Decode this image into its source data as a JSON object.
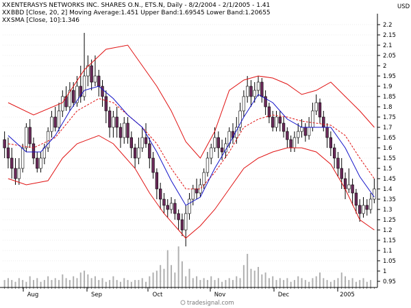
{
  "header": {
    "line1": "ENTERASYS NETWORKS INC. SHARES O.N., ETS.N, Daily - 8/2/2004 - 2/1/2005 - 1.41",
    "line2": "BBD [Close, 20, 2] Moving Average:1.451 Upper Band:1.69545 Lower Band:1.20655",
    "line3": "SMA [Close, 10]:1.346",
    "currency": "USD",
    "watermark": "tradesignal.com",
    "marker": "XX"
  },
  "colors": {
    "background": "#ffffff",
    "up_candle": "#ffffff",
    "down_candle": "#6b2a5a",
    "candle_outline": "#000000",
    "band": "#e01010",
    "moving_average": "#e01010",
    "sma": "#1010c8",
    "volume": "#b0b0b0",
    "grid": "#d8d8d8",
    "header_line1": "#000000",
    "header_line2": "#cc0000",
    "header_line3": "#0000cc"
  },
  "chart_data": {
    "type": "candlestick",
    "x_labels": [
      "Aug",
      "Sep",
      "Oct",
      "Nov",
      "Dec",
      "2005"
    ],
    "y_ticks": [
      "0.95",
      "1",
      "1.05",
      "1.1",
      "1.15",
      "1.2",
      "1.25",
      "1.3",
      "1.35",
      "1.4",
      "1.45",
      "1.5",
      "1.55",
      "1.6",
      "1.65",
      "1.7",
      "1.75",
      "1.8",
      "1.85",
      "1.9",
      "1.95",
      "2",
      "2.05",
      "2.1",
      "2.15",
      "2.2"
    ],
    "ylim": [
      0.92,
      2.22
    ],
    "candles": [
      [
        1.64,
        1.6,
        1.68,
        1.55
      ],
      [
        1.6,
        1.55,
        1.65,
        1.5
      ],
      [
        1.55,
        1.5,
        1.6,
        1.45
      ],
      [
        1.5,
        1.45,
        1.55,
        1.42
      ],
      [
        1.45,
        1.5,
        1.55,
        1.42
      ],
      [
        1.5,
        1.6,
        1.62,
        1.48
      ],
      [
        1.6,
        1.7,
        1.72,
        1.58
      ],
      [
        1.7,
        1.62,
        1.74,
        1.6
      ],
      [
        1.62,
        1.55,
        1.65,
        1.52
      ],
      [
        1.55,
        1.5,
        1.58,
        1.48
      ],
      [
        1.5,
        1.55,
        1.58,
        1.48
      ],
      [
        1.55,
        1.6,
        1.62,
        1.52
      ],
      [
        1.6,
        1.68,
        1.7,
        1.58
      ],
      [
        1.68,
        1.75,
        1.78,
        1.65
      ],
      [
        1.75,
        1.7,
        1.8,
        1.68
      ],
      [
        1.7,
        1.78,
        1.82,
        1.68
      ],
      [
        1.78,
        1.85,
        1.88,
        1.75
      ],
      [
        1.85,
        1.8,
        1.9,
        1.78
      ],
      [
        1.8,
        1.88,
        1.92,
        1.78
      ],
      [
        1.88,
        1.82,
        1.92,
        1.8
      ],
      [
        1.82,
        1.9,
        1.95,
        1.8
      ],
      [
        1.9,
        1.85,
        2.0,
        1.82
      ],
      [
        1.85,
        1.95,
        2.16,
        1.83
      ],
      [
        1.95,
        2.0,
        2.05,
        1.9
      ],
      [
        2.0,
        1.92,
        2.03,
        1.88
      ],
      [
        1.92,
        1.95,
        2.05,
        1.9
      ],
      [
        1.95,
        1.9,
        1.98,
        1.85
      ],
      [
        1.9,
        1.85,
        1.93,
        1.8
      ],
      [
        1.85,
        1.78,
        1.88,
        1.72
      ],
      [
        1.78,
        1.7,
        1.8,
        1.65
      ],
      [
        1.7,
        1.75,
        1.78,
        1.65
      ],
      [
        1.75,
        1.7,
        1.8,
        1.65
      ],
      [
        1.7,
        1.65,
        1.72,
        1.6
      ],
      [
        1.65,
        1.72,
        1.75,
        1.62
      ],
      [
        1.72,
        1.65,
        1.75,
        1.62
      ],
      [
        1.65,
        1.6,
        1.68,
        1.55
      ],
      [
        1.6,
        1.55,
        1.62,
        1.5
      ],
      [
        1.55,
        1.6,
        1.65,
        1.52
      ],
      [
        1.6,
        1.65,
        1.7,
        1.58
      ],
      [
        1.65,
        1.62,
        1.72,
        1.6
      ],
      [
        1.62,
        1.55,
        1.65,
        1.5
      ],
      [
        1.55,
        1.48,
        1.58,
        1.45
      ],
      [
        1.48,
        1.4,
        1.5,
        1.35
      ],
      [
        1.4,
        1.35,
        1.43,
        1.3
      ],
      [
        1.35,
        1.32,
        1.38,
        1.28
      ],
      [
        1.32,
        1.3,
        1.35,
        1.26
      ],
      [
        1.3,
        1.33,
        1.36,
        1.28
      ],
      [
        1.33,
        1.28,
        1.35,
        1.25
      ],
      [
        1.28,
        1.25,
        1.3,
        1.2
      ],
      [
        1.25,
        1.2,
        1.28,
        1.17
      ],
      [
        1.2,
        1.28,
        1.32,
        1.12
      ],
      [
        1.28,
        1.35,
        1.38,
        1.25
      ],
      [
        1.35,
        1.4,
        1.42,
        1.32
      ],
      [
        1.4,
        1.38,
        1.45,
        1.35
      ],
      [
        1.38,
        1.42,
        1.45,
        1.36
      ],
      [
        1.42,
        1.48,
        1.5,
        1.4
      ],
      [
        1.48,
        1.55,
        1.58,
        1.46
      ],
      [
        1.55,
        1.6,
        1.62,
        1.52
      ],
      [
        1.6,
        1.65,
        1.7,
        1.58
      ],
      [
        1.65,
        1.6,
        1.68,
        1.55
      ],
      [
        1.6,
        1.58,
        1.64,
        1.54
      ],
      [
        1.58,
        1.62,
        1.65,
        1.55
      ],
      [
        1.62,
        1.68,
        1.7,
        1.6
      ],
      [
        1.68,
        1.65,
        1.72,
        1.62
      ],
      [
        1.65,
        1.7,
        1.75,
        1.62
      ],
      [
        1.7,
        1.78,
        1.82,
        1.68
      ],
      [
        1.78,
        1.85,
        1.88,
        1.75
      ],
      [
        1.85,
        1.9,
        1.95,
        1.82
      ],
      [
        1.9,
        1.85,
        1.93,
        1.8
      ],
      [
        1.85,
        1.88,
        1.92,
        1.82
      ],
      [
        1.88,
        1.92,
        1.95,
        1.85
      ],
      [
        1.92,
        1.85,
        1.94,
        1.82
      ],
      [
        1.85,
        1.8,
        1.88,
        1.76
      ],
      [
        1.8,
        1.75,
        1.82,
        1.72
      ],
      [
        1.75,
        1.7,
        1.78,
        1.68
      ],
      [
        1.7,
        1.75,
        1.78,
        1.68
      ],
      [
        1.75,
        1.72,
        1.78,
        1.68
      ],
      [
        1.72,
        1.68,
        1.75,
        1.65
      ],
      [
        1.68,
        1.64,
        1.7,
        1.6
      ],
      [
        1.64,
        1.6,
        1.66,
        1.58
      ],
      [
        1.6,
        1.65,
        1.68,
        1.58
      ],
      [
        1.65,
        1.68,
        1.72,
        1.62
      ],
      [
        1.68,
        1.7,
        1.74,
        1.65
      ],
      [
        1.7,
        1.66,
        1.72,
        1.63
      ],
      [
        1.66,
        1.7,
        1.75,
        1.64
      ],
      [
        1.7,
        1.78,
        1.82,
        1.68
      ],
      [
        1.78,
        1.82,
        1.86,
        1.76
      ],
      [
        1.82,
        1.75,
        1.84,
        1.72
      ],
      [
        1.75,
        1.7,
        1.78,
        1.68
      ],
      [
        1.7,
        1.65,
        1.72,
        1.6
      ],
      [
        1.65,
        1.6,
        1.68,
        1.56
      ],
      [
        1.6,
        1.55,
        1.62,
        1.5
      ],
      [
        1.55,
        1.5,
        1.58,
        1.46
      ],
      [
        1.5,
        1.45,
        1.55,
        1.4
      ],
      [
        1.45,
        1.4,
        1.48,
        1.35
      ],
      [
        1.4,
        1.42,
        1.5,
        1.38
      ],
      [
        1.42,
        1.38,
        1.45,
        1.32
      ],
      [
        1.38,
        1.32,
        1.4,
        1.28
      ],
      [
        1.32,
        1.28,
        1.35,
        1.24
      ],
      [
        1.28,
        1.32,
        1.36,
        1.26
      ],
      [
        1.32,
        1.3,
        1.35,
        1.27
      ],
      [
        1.3,
        1.35,
        1.38,
        1.28
      ],
      [
        1.35,
        1.4,
        1.45,
        1.33
      ]
    ],
    "bollinger_upper": [
      [
        1,
        1.82
      ],
      [
        8,
        1.76
      ],
      [
        16,
        1.82
      ],
      [
        22,
        1.98
      ],
      [
        28,
        2.08
      ],
      [
        34,
        2.1
      ],
      [
        38,
        2.0
      ],
      [
        42,
        1.9
      ],
      [
        46,
        1.78
      ],
      [
        50,
        1.63
      ],
      [
        54,
        1.55
      ],
      [
        58,
        1.68
      ],
      [
        62,
        1.88
      ],
      [
        66,
        1.93
      ],
      [
        70,
        1.95
      ],
      [
        74,
        1.94
      ],
      [
        78,
        1.91
      ],
      [
        82,
        1.86
      ],
      [
        86,
        1.88
      ],
      [
        90,
        1.92
      ],
      [
        94,
        1.85
      ],
      [
        98,
        1.78
      ],
      [
        102,
        1.7
      ]
    ],
    "bollinger_lower": [
      [
        1,
        1.45
      ],
      [
        6,
        1.42
      ],
      [
        12,
        1.44
      ],
      [
        16,
        1.55
      ],
      [
        20,
        1.62
      ],
      [
        26,
        1.66
      ],
      [
        30,
        1.62
      ],
      [
        36,
        1.5
      ],
      [
        40,
        1.38
      ],
      [
        44,
        1.28
      ],
      [
        48,
        1.2
      ],
      [
        50,
        1.16
      ],
      [
        54,
        1.22
      ],
      [
        58,
        1.3
      ],
      [
        62,
        1.4
      ],
      [
        66,
        1.5
      ],
      [
        70,
        1.55
      ],
      [
        74,
        1.58
      ],
      [
        78,
        1.6
      ],
      [
        82,
        1.6
      ],
      [
        86,
        1.58
      ],
      [
        90,
        1.52
      ],
      [
        94,
        1.4
      ],
      [
        98,
        1.25
      ],
      [
        102,
        1.2
      ]
    ],
    "moving_average": [
      [
        1,
        1.62
      ],
      [
        8,
        1.6
      ],
      [
        14,
        1.65
      ],
      [
        20,
        1.78
      ],
      [
        26,
        1.84
      ],
      [
        30,
        1.82
      ],
      [
        34,
        1.76
      ],
      [
        38,
        1.7
      ],
      [
        42,
        1.62
      ],
      [
        46,
        1.5
      ],
      [
        50,
        1.4
      ],
      [
        54,
        1.4
      ],
      [
        58,
        1.48
      ],
      [
        62,
        1.58
      ],
      [
        66,
        1.7
      ],
      [
        70,
        1.74
      ],
      [
        74,
        1.76
      ],
      [
        78,
        1.75
      ],
      [
        82,
        1.73
      ],
      [
        86,
        1.72
      ],
      [
        90,
        1.71
      ],
      [
        94,
        1.66
      ],
      [
        98,
        1.55
      ],
      [
        102,
        1.45
      ]
    ],
    "sma": [
      [
        1,
        1.66
      ],
      [
        6,
        1.58
      ],
      [
        10,
        1.58
      ],
      [
        14,
        1.66
      ],
      [
        18,
        1.78
      ],
      [
        22,
        1.88
      ],
      [
        26,
        1.9
      ],
      [
        30,
        1.84
      ],
      [
        34,
        1.76
      ],
      [
        38,
        1.7
      ],
      [
        42,
        1.58
      ],
      [
        46,
        1.44
      ],
      [
        50,
        1.32
      ],
      [
        54,
        1.36
      ],
      [
        58,
        1.5
      ],
      [
        62,
        1.62
      ],
      [
        66,
        1.75
      ],
      [
        70,
        1.86
      ],
      [
        74,
        1.82
      ],
      [
        78,
        1.74
      ],
      [
        82,
        1.7
      ],
      [
        86,
        1.7
      ],
      [
        90,
        1.7
      ],
      [
        94,
        1.6
      ],
      [
        98,
        1.46
      ],
      [
        102,
        1.36
      ]
    ],
    "volume": [
      4,
      5,
      4,
      3,
      5,
      4,
      3,
      6,
      4,
      5,
      3,
      4,
      6,
      4,
      5,
      4,
      7,
      5,
      4,
      6,
      5,
      8,
      9,
      7,
      5,
      6,
      4,
      5,
      3,
      4,
      6,
      4,
      3,
      5,
      4,
      3,
      4,
      4,
      5,
      3,
      6,
      8,
      9,
      12,
      10,
      20,
      12,
      8,
      22,
      14,
      6,
      10,
      5,
      6,
      4,
      5,
      4,
      6,
      4,
      5,
      3,
      4,
      5,
      4,
      6,
      5,
      12,
      18,
      10,
      9,
      11,
      7,
      8,
      5,
      6,
      4,
      5,
      4,
      5,
      3,
      4,
      6,
      5,
      4,
      3,
      5,
      6,
      8,
      5,
      4,
      3,
      4,
      5,
      8,
      6,
      4,
      5,
      3,
      4,
      5,
      3,
      4
    ]
  }
}
